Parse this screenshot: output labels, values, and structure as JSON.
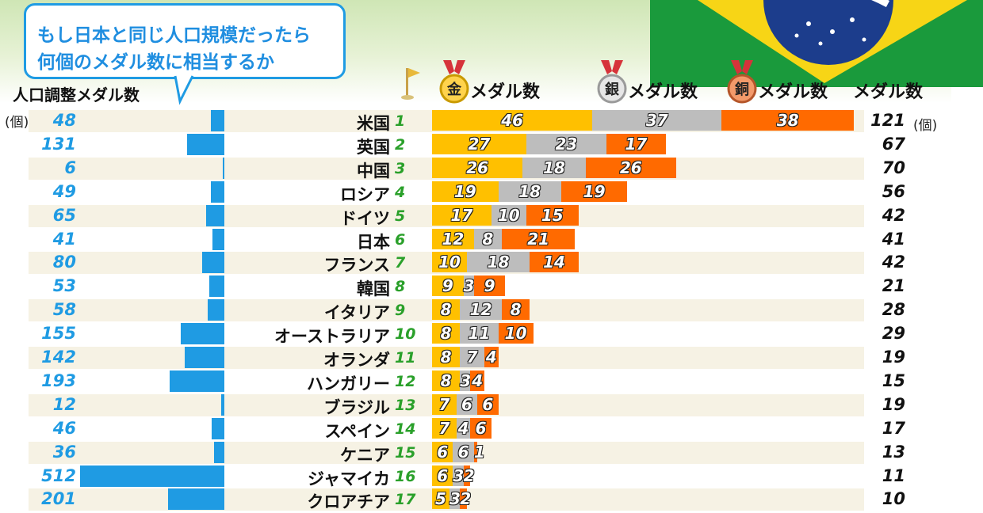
{
  "callout": {
    "line1": "もし日本と同じ人口規模だったら",
    "line2": "何個のメダル数に相当するか"
  },
  "headers": {
    "adjusted": "人口調整メダル数",
    "unit_left": "(個)",
    "unit_right": "(個)",
    "gold_glyph": "金",
    "silver_glyph": "銀",
    "bronze_glyph": "銅",
    "medal_count": "メダル数",
    "total": "メダル数"
  },
  "colors": {
    "gold": "#ffc000",
    "silver": "#bdbdbd",
    "bronze": "#ff6a00",
    "adjusted_bar": "#1f9be3",
    "rank": "#2aa02a",
    "stripe": "#f6f2e4"
  },
  "icons": {
    "flag": "golf-flag-icon",
    "gold_medal": "gold-medal-icon",
    "silver_medal": "silver-medal-icon",
    "bronze_medal": "bronze-medal-icon",
    "background": "brazil-flag-icon"
  },
  "chart_data": {
    "type": "bar",
    "categories": [
      "米国",
      "英国",
      "中国",
      "ロシア",
      "ドイツ",
      "日本",
      "フランス",
      "韓国",
      "イタリア",
      "オーストラリア",
      "オランダ",
      "ハンガリー",
      "ブラジル",
      "スペイン",
      "ケニア",
      "ジャマイカ",
      "クロアチア"
    ],
    "ranks": [
      "1",
      "2",
      "3",
      "4",
      "5",
      "6",
      "7",
      "8",
      "9",
      "10",
      "11",
      "12",
      "13",
      "14",
      "15",
      "16",
      "17"
    ],
    "series": [
      {
        "name": "金メダル数",
        "values": [
          46,
          27,
          26,
          19,
          17,
          12,
          10,
          9,
          8,
          8,
          8,
          8,
          7,
          7,
          6,
          6,
          5
        ]
      },
      {
        "name": "銀メダル数",
        "values": [
          37,
          23,
          18,
          18,
          10,
          8,
          18,
          3,
          12,
          11,
          7,
          3,
          6,
          4,
          6,
          3,
          3
        ]
      },
      {
        "name": "銅メダル数",
        "values": [
          38,
          17,
          26,
          19,
          15,
          21,
          14,
          9,
          8,
          10,
          4,
          4,
          6,
          6,
          1,
          2,
          2
        ]
      }
    ],
    "totals": [
      "121",
      "67",
      "70",
      "56",
      "42",
      "41",
      "42",
      "21",
      "28",
      "29",
      "19",
      "15",
      "19",
      "17",
      "13",
      "11",
      "10"
    ],
    "adjusted": [
      "48",
      "131",
      "6",
      "49",
      "65",
      "41",
      "80",
      "53",
      "58",
      "155",
      "142",
      "193",
      "12",
      "46",
      "36",
      "512",
      "201"
    ],
    "adjusted_values": [
      48,
      131,
      6,
      49,
      65,
      41,
      80,
      53,
      58,
      155,
      142,
      193,
      12,
      46,
      36,
      512,
      201
    ],
    "xlabel": "",
    "ylabel": "",
    "legend": "top"
  }
}
